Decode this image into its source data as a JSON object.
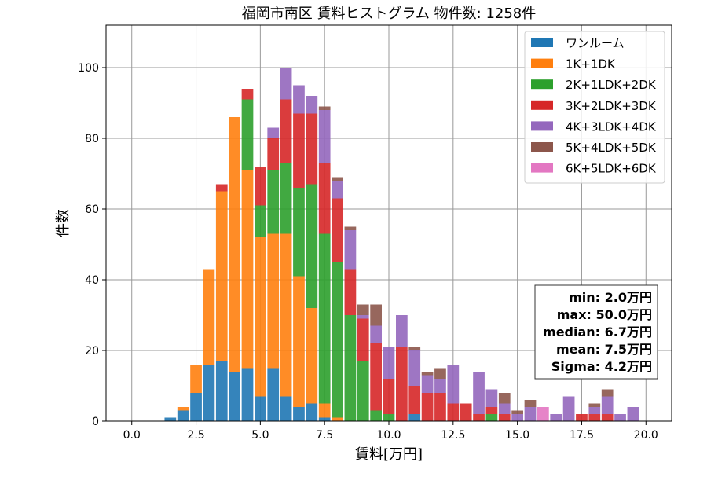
{
  "chart_data": {
    "type": "bar",
    "title": "福岡市南区 賃料ヒストグラム  物件数: 1258件",
    "xlabel": "賃料[万円]",
    "ylabel": "件数",
    "xlim": [
      -1,
      21
    ],
    "ylim": [
      0,
      112
    ],
    "xticks": [
      0.0,
      2.5,
      5.0,
      7.5,
      10.0,
      12.5,
      15.0,
      17.5,
      20.0
    ],
    "yticks": [
      0,
      20,
      40,
      60,
      80,
      100
    ],
    "grid": true,
    "stacked": true,
    "legend_position": "upper right",
    "bin_width": 0.5,
    "x": [
      1.5,
      2.0,
      2.5,
      3.0,
      3.5,
      4.0,
      4.5,
      5.0,
      5.5,
      6.0,
      6.5,
      7.0,
      7.5,
      8.0,
      8.5,
      9.0,
      9.5,
      10.0,
      10.5,
      11.0,
      11.5,
      12.0,
      12.5,
      13.0,
      13.5,
      14.0,
      14.5,
      15.0,
      15.5,
      16.0,
      16.5,
      17.0,
      17.5,
      18.0,
      18.5,
      19.0,
      19.5
    ],
    "series": [
      {
        "name": "ワンルーム",
        "color": "#1f77b4",
        "values": [
          1,
          3,
          8,
          16,
          17,
          14,
          15,
          7,
          15,
          7,
          4,
          5,
          1,
          0,
          0,
          0,
          0,
          0,
          0,
          2,
          0,
          0,
          0,
          0,
          0,
          0,
          0,
          0,
          0,
          0,
          0,
          0,
          0,
          0,
          0,
          0,
          0
        ]
      },
      {
        "name": "1K+1DK",
        "color": "#ff7f0e",
        "values": [
          0,
          1,
          8,
          27,
          48,
          72,
          56,
          45,
          38,
          46,
          37,
          27,
          4,
          1,
          0,
          0,
          0,
          0,
          0,
          0,
          0,
          0,
          0,
          0,
          0,
          0,
          0,
          0,
          0,
          0,
          0,
          0,
          0,
          0,
          0,
          0,
          0
        ]
      },
      {
        "name": "2K+1LDK+2DK",
        "color": "#2ca02c",
        "values": [
          0,
          0,
          0,
          0,
          0,
          0,
          20,
          9,
          18,
          20,
          25,
          35,
          48,
          44,
          30,
          17,
          3,
          2,
          0,
          0,
          0,
          0,
          0,
          0,
          0,
          2,
          0,
          0,
          0,
          0,
          0,
          0,
          0,
          0,
          0,
          0,
          0
        ]
      },
      {
        "name": "3K+2LDK+3DK",
        "color": "#d62728",
        "values": [
          0,
          0,
          0,
          0,
          2,
          0,
          3,
          11,
          9,
          18,
          21,
          20,
          20,
          18,
          13,
          12,
          19,
          10,
          21,
          8,
          8,
          8,
          5,
          5,
          2,
          2,
          2,
          0,
          0,
          0,
          0,
          0,
          2,
          2,
          2,
          0,
          0
        ]
      },
      {
        "name": "4K+3LDK+4DK",
        "color": "#9467bd",
        "values": [
          0,
          0,
          0,
          0,
          0,
          0,
          0,
          0,
          3,
          9,
          8,
          5,
          15,
          5,
          11,
          1,
          5,
          9,
          9,
          10,
          5,
          4,
          11,
          0,
          12,
          5,
          3,
          2,
          4,
          0,
          2,
          7,
          0,
          2,
          5,
          2,
          4
        ]
      },
      {
        "name": "5K+4LDK+5DK",
        "color": "#8c564b",
        "values": [
          0,
          0,
          0,
          0,
          0,
          0,
          0,
          0,
          0,
          0,
          0,
          0,
          1,
          1,
          1,
          3,
          6,
          0,
          0,
          1,
          1,
          3,
          0,
          0,
          0,
          0,
          3,
          1,
          2,
          0,
          0,
          0,
          0,
          1,
          2,
          0,
          0
        ]
      },
      {
        "name": "6K+5LDK+6DK",
        "color": "#e377c2",
        "values": [
          0,
          0,
          0,
          0,
          0,
          0,
          0,
          0,
          0,
          0,
          0,
          0,
          0,
          0,
          0,
          0,
          0,
          0,
          0,
          0,
          0,
          0,
          0,
          0,
          0,
          0,
          0,
          0,
          0,
          4,
          0,
          0,
          0,
          0,
          0,
          0,
          0
        ]
      }
    ],
    "annotation": [
      "min: 2.0万円",
      "max: 50.0万円",
      "median: 6.7万円",
      "mean: 7.5万円",
      "Sigma: 4.2万円"
    ]
  }
}
